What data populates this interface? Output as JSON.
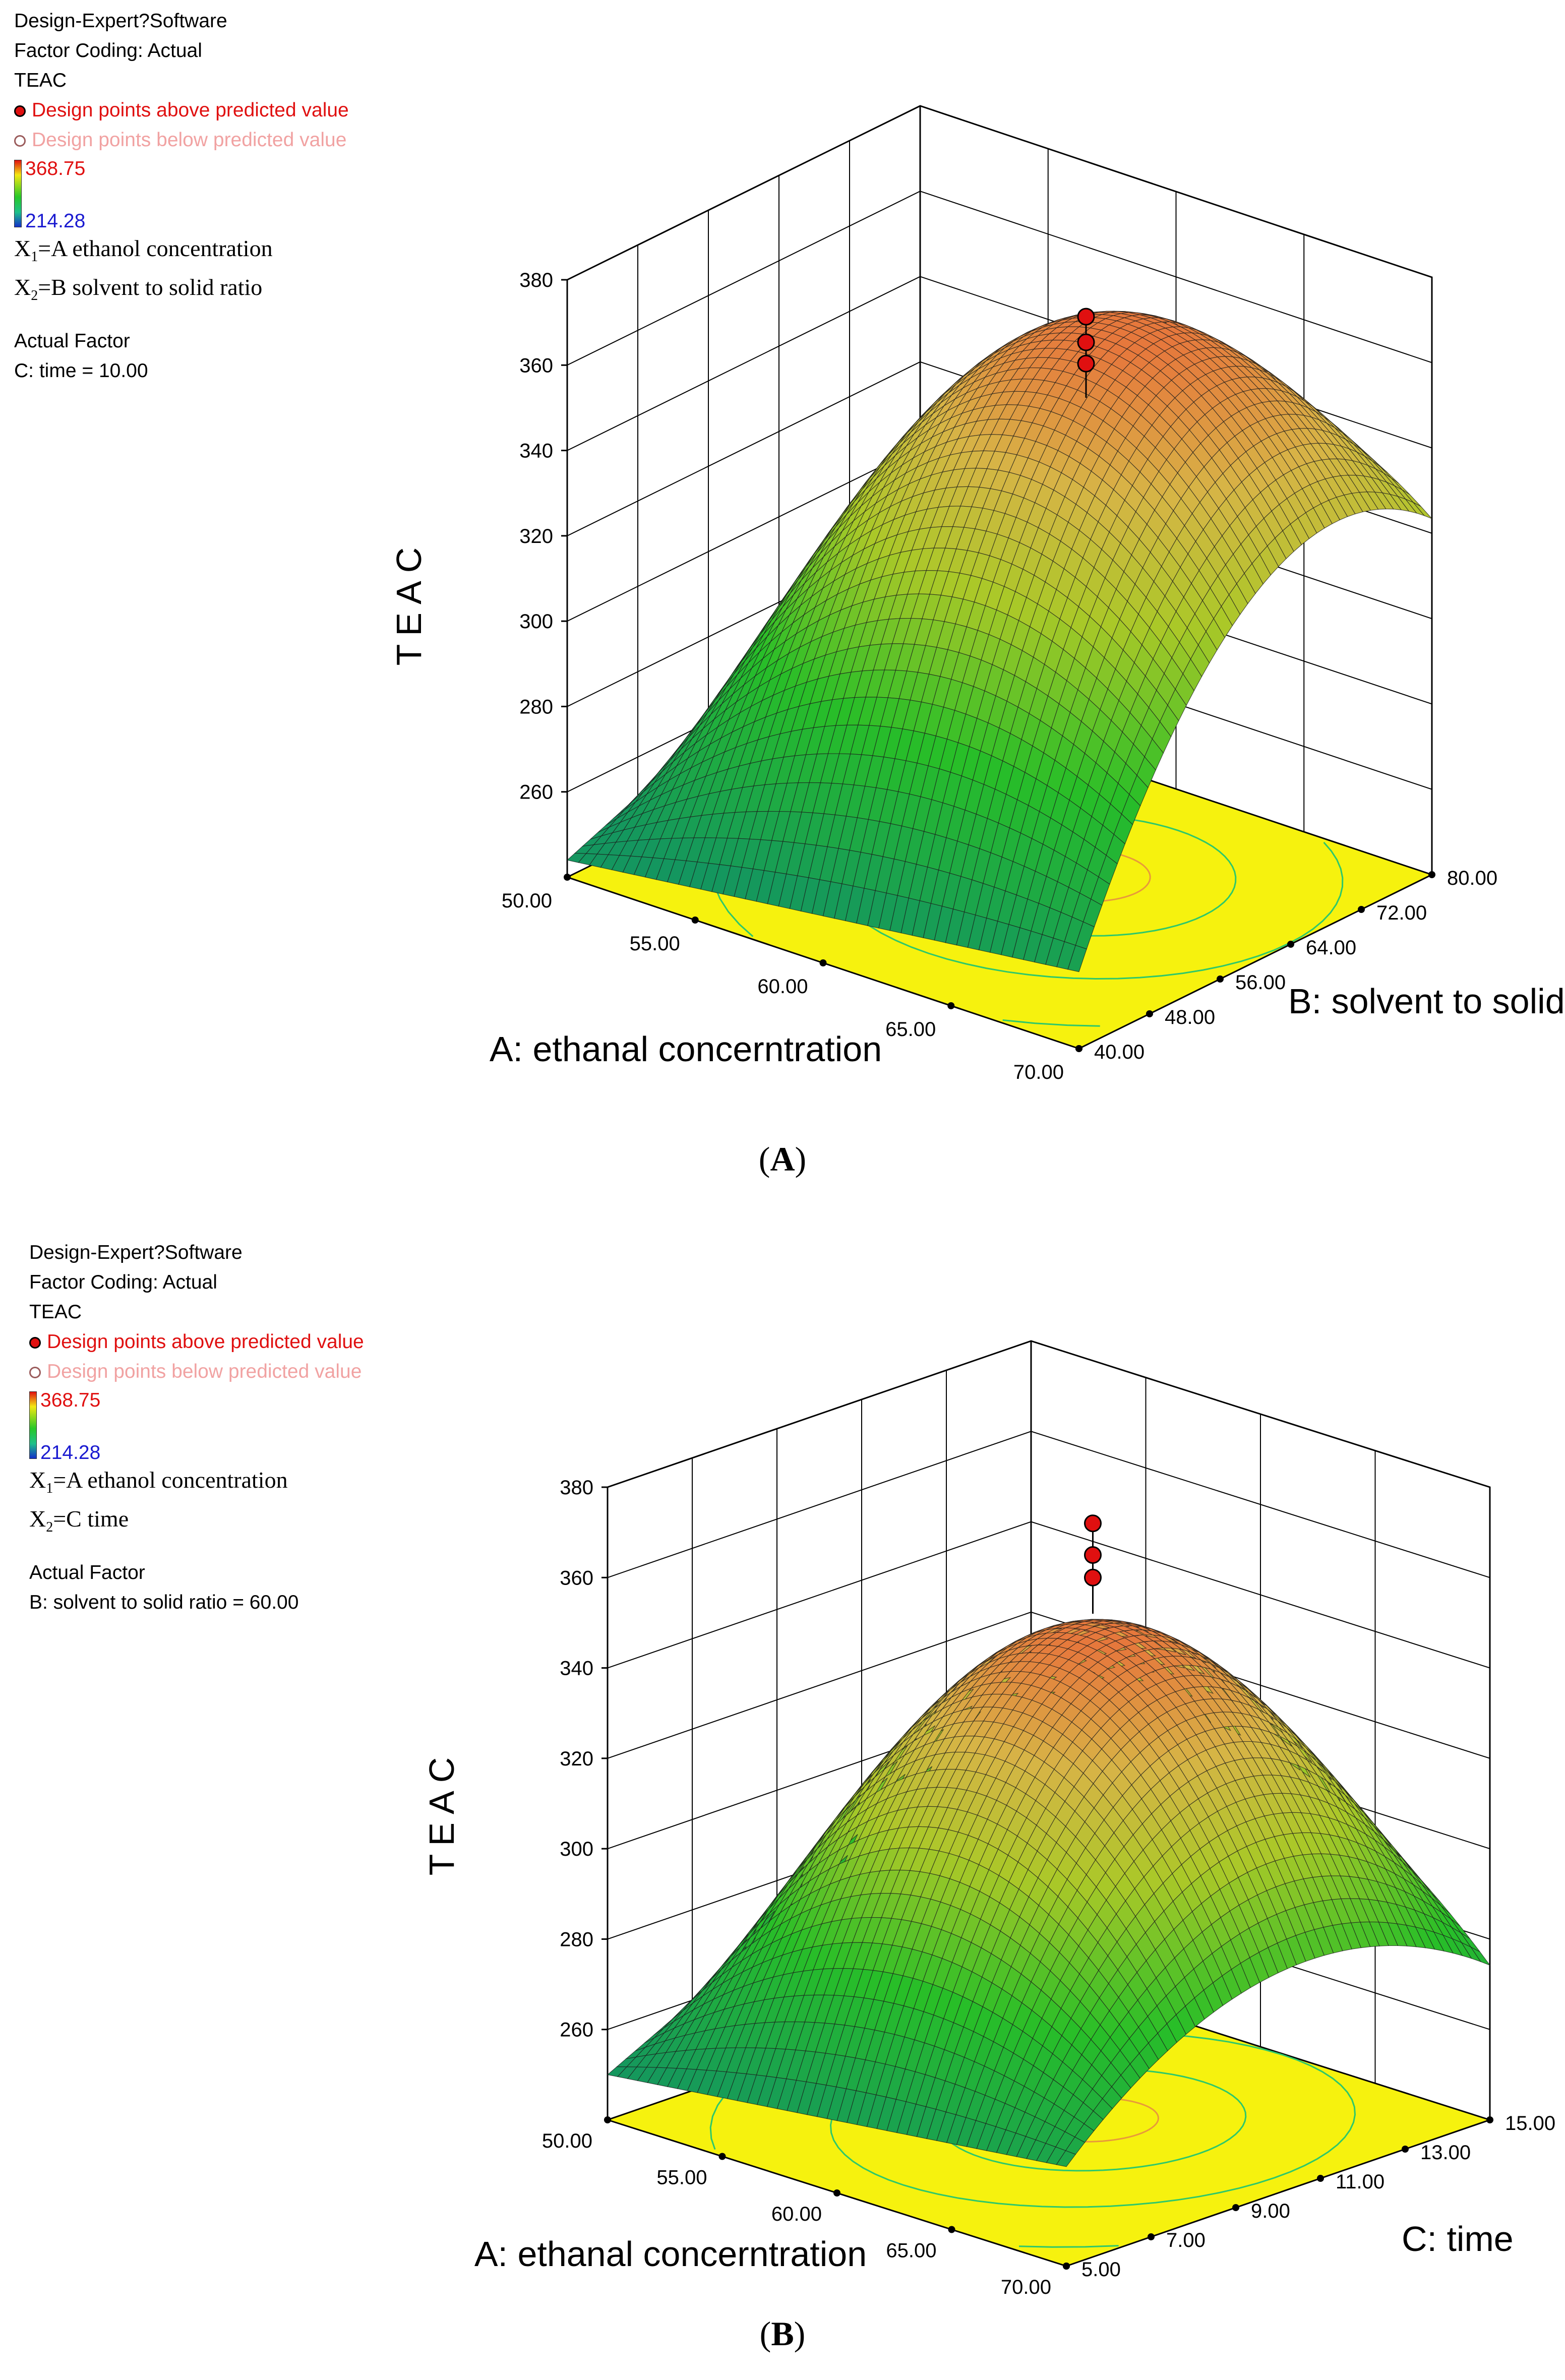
{
  "chart_data": [
    {
      "type": "surface",
      "panel": "A",
      "caption_letter": "A",
      "legend": {
        "software": "Design-Expert?Software",
        "coding": "Factor Coding: Actual",
        "response": "TEAC",
        "above": "Design points above predicted value",
        "below": "Design points below predicted value",
        "color_max": "368.75",
        "color_min": "214.28",
        "x1_prefix": "X",
        "x1_sub": "1",
        "x1_text": "=A ethanol concentration",
        "x2_prefix": "X",
        "x2_sub": "2",
        "x2_text": "=B solvent to solid ratio",
        "actual_factor_title": "Actual Factor",
        "actual_factor_value": "C: time = 10.00"
      },
      "zlabel": "TEAC",
      "xlabel": "A: ethanal concerntration",
      "ylabel": "B: solvent to solid ratio",
      "z_ticks": [
        "380",
        "360",
        "340",
        "320",
        "300",
        "280",
        "260"
      ],
      "x_ticks": [
        "50.00",
        "55.00",
        "60.00",
        "65.00",
        "70.00"
      ],
      "y_ticks": [
        "40.00",
        "48.00",
        "56.00",
        "64.00",
        "72.00",
        "80.00"
      ],
      "zlim": [
        240,
        380
      ],
      "xlim": [
        50,
        70
      ],
      "ylim": [
        40,
        80
      ],
      "corner_values": {
        "a50_b40": 244,
        "a50_b80": 278,
        "a70_b40": 258,
        "a70_b80": 295
      },
      "peak": {
        "a": 62,
        "b": 64,
        "teac": 366
      },
      "design_points_above": [
        371,
        365,
        360
      ]
    },
    {
      "type": "surface",
      "panel": "B",
      "caption_letter": "B",
      "legend": {
        "software": "Design-Expert?Software",
        "coding": "Factor Coding: Actual",
        "response": "TEAC",
        "above": "Design points above predicted value",
        "below": "Design points below predicted value",
        "color_max": "368.75",
        "color_min": "214.28",
        "x1_prefix": "X",
        "x1_sub": "1",
        "x1_text": "=A ethanol concentration",
        "x2_prefix": "X",
        "x2_sub": "2",
        "x2_text": "=C time",
        "actual_factor_title": "Actual Factor",
        "actual_factor_value": "B: solvent to solid ratio = 60.00"
      },
      "zlabel": "TEAC",
      "xlabel": "A: ethanal concerntration",
      "ylabel": "C: time",
      "z_ticks": [
        "380",
        "360",
        "340",
        "320",
        "300",
        "280",
        "260"
      ],
      "x_ticks": [
        "50.00",
        "55.00",
        "60.00",
        "65.00",
        "70.00"
      ],
      "y_ticks": [
        "5.00",
        "7.00",
        "9.00",
        "11.00",
        "13.00",
        "15.00"
      ],
      "zlim": [
        240,
        380
      ],
      "xlim": [
        50,
        70
      ],
      "ylim": [
        5,
        15
      ],
      "corner_values": {
        "a50_c5": 250,
        "a50_c15": 298,
        "a70_c5": 262,
        "a70_c15": 266
      },
      "peak": {
        "a": 61,
        "c": 10.5,
        "teac": 345
      },
      "design_points_above": [
        372,
        365,
        360
      ]
    }
  ]
}
